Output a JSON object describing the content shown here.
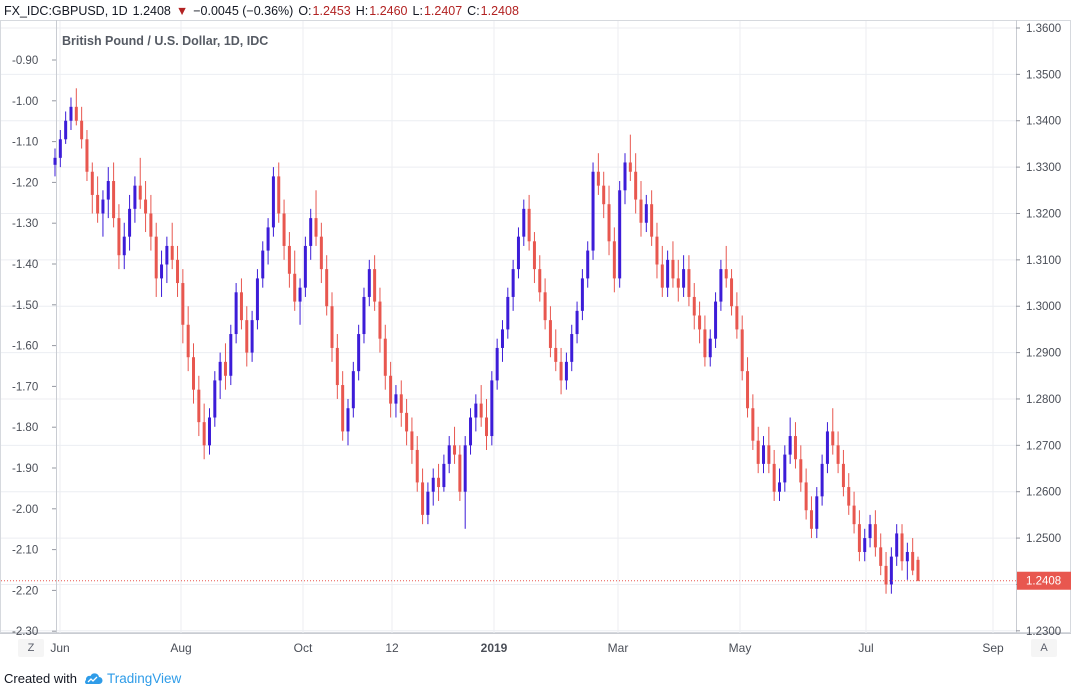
{
  "header": {
    "symbol": "FX_IDC:GBPUSD, 1D",
    "last": "1.2408",
    "change": "−0.0045 (−0.36%)",
    "open_label": "O:",
    "open": "1.2453",
    "high_label": "H:",
    "high": "1.2460",
    "low_label": "L:",
    "low": "1.2407",
    "close_label": "C:",
    "close": "1.2408",
    "down_color": "#b22222"
  },
  "chart_data": {
    "type": "candlestick",
    "title": "British Pound / U.S. Dollar, 1D, IDC",
    "left_axis_ticks": [
      "-0.90",
      "-1.00",
      "-1.10",
      "-1.20",
      "-1.30",
      "-1.40",
      "-1.50",
      "-1.60",
      "-1.70",
      "-1.80",
      "-1.90",
      "-2.00",
      "-2.10",
      "-2.20",
      "-2.30"
    ],
    "right_axis_ticks": [
      "1.3600",
      "1.3500",
      "1.3400",
      "1.3300",
      "1.3200",
      "1.3100",
      "1.3000",
      "1.2900",
      "1.2800",
      "1.2700",
      "1.2600",
      "1.2500",
      "1.2400",
      "1.2300"
    ],
    "x_ticks": [
      "Jun",
      "Aug",
      "Oct",
      "12",
      "2019",
      "Mar",
      "May",
      "Jul",
      "Sep"
    ],
    "ylim": [
      1.225,
      1.361
    ],
    "last_price_label": "1.2408",
    "last_price": 1.2408,
    "grid": true,
    "colors": {
      "up": "#3c1cd8",
      "down": "#e8574f",
      "last_price": "#e8574f",
      "grid": "#e9ecf1"
    },
    "series": [
      {
        "values": [
          [
            1.3305,
            1.334,
            1.328,
            1.332
          ],
          [
            1.332,
            1.338,
            1.33,
            1.336
          ],
          [
            1.336,
            1.342,
            1.335,
            1.34
          ],
          [
            1.34,
            1.345,
            1.338,
            1.343
          ],
          [
            1.343,
            1.347,
            1.339,
            1.34
          ],
          [
            1.34,
            1.343,
            1.334,
            1.336
          ],
          [
            1.336,
            1.338,
            1.327,
            1.329
          ],
          [
            1.329,
            1.331,
            1.32,
            1.324
          ],
          [
            1.324,
            1.328,
            1.318,
            1.32
          ],
          [
            1.32,
            1.325,
            1.315,
            1.323
          ],
          [
            1.323,
            1.33,
            1.319,
            1.327
          ],
          [
            1.327,
            1.331,
            1.317,
            1.319
          ],
          [
            1.319,
            1.322,
            1.308,
            1.311
          ],
          [
            1.311,
            1.318,
            1.308,
            1.315
          ],
          [
            1.315,
            1.324,
            1.312,
            1.321
          ],
          [
            1.321,
            1.328,
            1.318,
            1.326
          ],
          [
            1.326,
            1.332,
            1.321,
            1.323
          ],
          [
            1.323,
            1.327,
            1.316,
            1.32
          ],
          [
            1.32,
            1.324,
            1.312,
            1.315
          ],
          [
            1.315,
            1.318,
            1.302,
            1.306
          ],
          [
            1.306,
            1.312,
            1.302,
            1.309
          ],
          [
            1.309,
            1.315,
            1.305,
            1.313
          ],
          [
            1.313,
            1.318,
            1.308,
            1.31
          ],
          [
            1.31,
            1.313,
            1.302,
            1.305
          ],
          [
            1.305,
            1.308,
            1.292,
            1.296
          ],
          [
            1.296,
            1.3,
            1.286,
            1.289
          ],
          [
            1.289,
            1.292,
            1.279,
            1.282
          ],
          [
            1.282,
            1.285,
            1.272,
            1.275
          ],
          [
            1.275,
            1.279,
            1.267,
            1.27
          ],
          [
            1.27,
            1.278,
            1.268,
            1.276
          ],
          [
            1.276,
            1.286,
            1.274,
            1.284
          ],
          [
            1.284,
            1.29,
            1.28,
            1.288
          ],
          [
            1.288,
            1.292,
            1.282,
            1.285
          ],
          [
            1.285,
            1.296,
            1.283,
            1.294
          ],
          [
            1.294,
            1.305,
            1.292,
            1.303
          ],
          [
            1.303,
            1.306,
            1.295,
            1.297
          ],
          [
            1.297,
            1.3,
            1.287,
            1.29
          ],
          [
            1.29,
            1.299,
            1.288,
            1.297
          ],
          [
            1.297,
            1.308,
            1.295,
            1.306
          ],
          [
            1.306,
            1.314,
            1.304,
            1.312
          ],
          [
            1.312,
            1.319,
            1.309,
            1.317
          ],
          [
            1.317,
            1.33,
            1.315,
            1.328
          ],
          [
            1.328,
            1.331,
            1.318,
            1.32
          ],
          [
            1.32,
            1.323,
            1.31,
            1.313
          ],
          [
            1.313,
            1.316,
            1.304,
            1.307
          ],
          [
            1.307,
            1.312,
            1.299,
            1.301
          ],
          [
            1.301,
            1.306,
            1.296,
            1.304
          ],
          [
            1.304,
            1.315,
            1.302,
            1.313
          ],
          [
            1.313,
            1.321,
            1.31,
            1.319
          ],
          [
            1.319,
            1.325,
            1.313,
            1.315
          ],
          [
            1.315,
            1.318,
            1.305,
            1.308
          ],
          [
            1.308,
            1.311,
            1.298,
            1.3
          ],
          [
            1.3,
            1.303,
            1.288,
            1.291
          ],
          [
            1.291,
            1.294,
            1.28,
            1.283
          ],
          [
            1.283,
            1.286,
            1.271,
            1.273
          ],
          [
            1.273,
            1.28,
            1.27,
            1.278
          ],
          [
            1.278,
            1.288,
            1.276,
            1.286
          ],
          [
            1.286,
            1.296,
            1.284,
            1.294
          ],
          [
            1.294,
            1.304,
            1.292,
            1.302
          ],
          [
            1.302,
            1.31,
            1.3,
            1.308
          ],
          [
            1.308,
            1.311,
            1.299,
            1.301
          ],
          [
            1.301,
            1.304,
            1.29,
            1.293
          ],
          [
            1.293,
            1.296,
            1.282,
            1.285
          ],
          [
            1.285,
            1.288,
            1.276,
            1.279
          ],
          [
            1.279,
            1.283,
            1.276,
            1.281
          ],
          [
            1.281,
            1.284,
            1.274,
            1.277
          ],
          [
            1.277,
            1.28,
            1.27,
            1.273
          ],
          [
            1.273,
            1.276,
            1.266,
            1.269
          ],
          [
            1.269,
            1.272,
            1.26,
            1.262
          ],
          [
            1.262,
            1.265,
            1.253,
            1.255
          ],
          [
            1.255,
            1.262,
            1.253,
            1.26
          ],
          [
            1.26,
            1.265,
            1.257,
            1.263
          ],
          [
            1.263,
            1.266,
            1.258,
            1.261
          ],
          [
            1.261,
            1.268,
            1.26,
            1.266
          ],
          [
            1.266,
            1.272,
            1.264,
            1.27
          ],
          [
            1.27,
            1.274,
            1.266,
            1.268
          ],
          [
            1.268,
            1.27,
            1.258,
            1.26
          ],
          [
            1.26,
            1.272,
            1.252,
            1.27
          ],
          [
            1.27,
            1.278,
            1.268,
            1.276
          ],
          [
            1.276,
            1.281,
            1.273,
            1.279
          ],
          [
            1.279,
            1.283,
            1.274,
            1.276
          ],
          [
            1.276,
            1.28,
            1.269,
            1.272
          ],
          [
            1.272,
            1.286,
            1.27,
            1.284
          ],
          [
            1.284,
            1.293,
            1.282,
            1.291
          ],
          [
            1.291,
            1.297,
            1.288,
            1.295
          ],
          [
            1.295,
            1.304,
            1.293,
            1.302
          ],
          [
            1.302,
            1.31,
            1.299,
            1.308
          ],
          [
            1.308,
            1.317,
            1.306,
            1.315
          ],
          [
            1.315,
            1.323,
            1.313,
            1.321
          ],
          [
            1.321,
            1.324,
            1.312,
            1.314
          ],
          [
            1.314,
            1.316,
            1.305,
            1.308
          ],
          [
            1.308,
            1.311,
            1.301,
            1.303
          ],
          [
            1.303,
            1.306,
            1.295,
            1.297
          ],
          [
            1.297,
            1.3,
            1.289,
            1.291
          ],
          [
            1.291,
            1.295,
            1.286,
            1.288
          ],
          [
            1.288,
            1.291,
            1.281,
            1.284
          ],
          [
            1.284,
            1.29,
            1.282,
            1.288
          ],
          [
            1.288,
            1.296,
            1.286,
            1.294
          ],
          [
            1.294,
            1.301,
            1.292,
            1.299
          ],
          [
            1.299,
            1.308,
            1.297,
            1.306
          ],
          [
            1.306,
            1.314,
            1.304,
            1.312
          ],
          [
            1.312,
            1.331,
            1.31,
            1.329
          ],
          [
            1.329,
            1.333,
            1.324,
            1.326
          ],
          [
            1.326,
            1.329,
            1.319,
            1.322
          ],
          [
            1.322,
            1.326,
            1.311,
            1.314
          ],
          [
            1.314,
            1.317,
            1.303,
            1.306
          ],
          [
            1.306,
            1.327,
            1.304,
            1.325
          ],
          [
            1.325,
            1.333,
            1.322,
            1.331
          ],
          [
            1.331,
            1.337,
            1.327,
            1.329
          ],
          [
            1.329,
            1.333,
            1.32,
            1.323
          ],
          [
            1.323,
            1.327,
            1.315,
            1.318
          ],
          [
            1.318,
            1.324,
            1.316,
            1.322
          ],
          [
            1.322,
            1.325,
            1.313,
            1.315
          ],
          [
            1.315,
            1.318,
            1.306,
            1.309
          ],
          [
            1.309,
            1.313,
            1.302,
            1.304
          ],
          [
            1.304,
            1.312,
            1.302,
            1.31
          ],
          [
            1.31,
            1.314,
            1.304,
            1.306
          ],
          [
            1.306,
            1.31,
            1.301,
            1.304
          ],
          [
            1.304,
            1.311,
            1.302,
            1.308
          ],
          [
            1.308,
            1.311,
            1.3,
            1.302
          ],
          [
            1.302,
            1.305,
            1.295,
            1.298
          ],
          [
            1.298,
            1.301,
            1.292,
            1.295
          ],
          [
            1.295,
            1.298,
            1.287,
            1.289
          ],
          [
            1.289,
            1.295,
            1.287,
            1.293
          ],
          [
            1.293,
            1.303,
            1.291,
            1.301
          ],
          [
            1.301,
            1.31,
            1.299,
            1.308
          ],
          [
            1.308,
            1.313,
            1.304,
            1.306
          ],
          [
            1.306,
            1.308,
            1.298,
            1.3
          ],
          [
            1.3,
            1.303,
            1.293,
            1.295
          ],
          [
            1.295,
            1.298,
            1.284,
            1.286
          ],
          [
            1.286,
            1.289,
            1.276,
            1.278
          ],
          [
            1.278,
            1.281,
            1.269,
            1.271
          ],
          [
            1.271,
            1.274,
            1.264,
            1.266
          ],
          [
            1.266,
            1.272,
            1.264,
            1.27
          ],
          [
            1.27,
            1.274,
            1.264,
            1.266
          ],
          [
            1.266,
            1.269,
            1.258,
            1.26
          ],
          [
            1.26,
            1.265,
            1.258,
            1.262
          ],
          [
            1.262,
            1.27,
            1.26,
            1.268
          ],
          [
            1.268,
            1.276,
            1.266,
            1.272
          ],
          [
            1.272,
            1.275,
            1.265,
            1.267
          ],
          [
            1.267,
            1.27,
            1.26,
            1.262
          ],
          [
            1.262,
            1.265,
            1.254,
            1.256
          ],
          [
            1.256,
            1.259,
            1.25,
            1.252
          ],
          [
            1.252,
            1.261,
            1.25,
            1.259
          ],
          [
            1.259,
            1.268,
            1.257,
            1.266
          ],
          [
            1.266,
            1.275,
            1.264,
            1.273
          ],
          [
            1.273,
            1.278,
            1.268,
            1.27
          ],
          [
            1.27,
            1.273,
            1.264,
            1.266
          ],
          [
            1.266,
            1.269,
            1.259,
            1.261
          ],
          [
            1.261,
            1.264,
            1.255,
            1.257
          ],
          [
            1.257,
            1.26,
            1.251,
            1.253
          ],
          [
            1.253,
            1.256,
            1.245,
            1.247
          ],
          [
            1.247,
            1.252,
            1.245,
            1.25
          ],
          [
            1.25,
            1.255,
            1.248,
            1.253
          ],
          [
            1.253,
            1.256,
            1.246,
            1.248
          ],
          [
            1.248,
            1.251,
            1.242,
            1.244
          ],
          [
            1.244,
            1.247,
            1.238,
            1.24
          ],
          [
            1.24,
            1.248,
            1.238,
            1.246
          ],
          [
            1.246,
            1.253,
            1.244,
            1.251
          ],
          [
            1.251,
            1.253,
            1.243,
            1.245
          ],
          [
            1.245,
            1.249,
            1.241,
            1.247
          ],
          [
            1.247,
            1.25,
            1.242,
            1.243
          ],
          [
            1.2453,
            1.246,
            1.2407,
            1.2408
          ]
        ]
      }
    ]
  },
  "corner": {
    "left": "Z",
    "right": "A"
  },
  "footer": {
    "created_with": "Created with",
    "brand": "TradingView"
  }
}
